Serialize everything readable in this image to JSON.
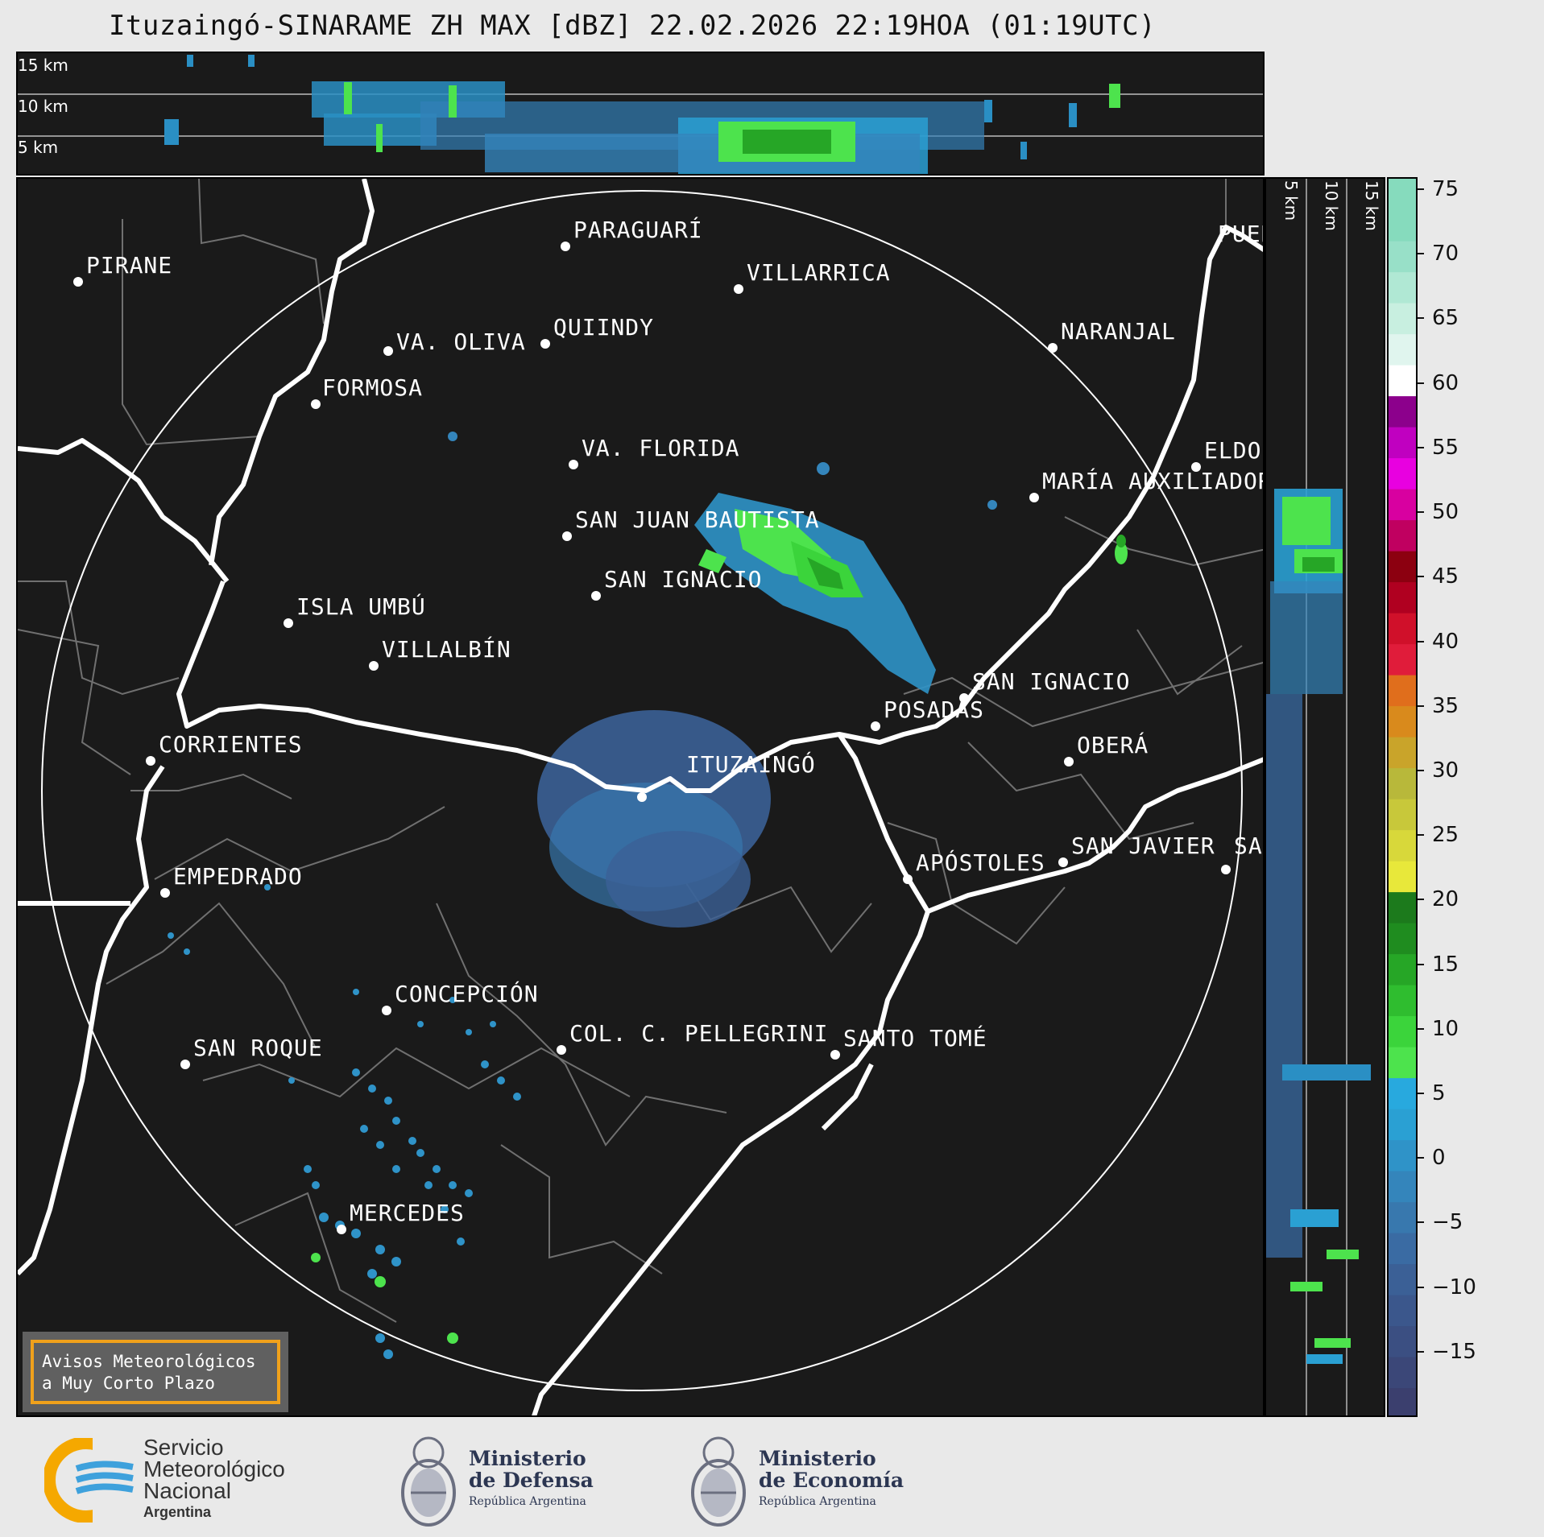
{
  "title": "Ituzaingó-SINARAME ZH MAX [dBZ] 22.02.2026 22:19HOA (01:19UTC)",
  "altitude_labels": {
    "top": [
      "15 km",
      "10 km",
      "5 km"
    ],
    "right": [
      "5 km",
      "10 km",
      "15 km"
    ]
  },
  "cities": [
    "PIRANE",
    "PARAGUARÍ",
    "VILLARRICA",
    "QUIINDY",
    "VA. OLIVA",
    "FORMOSA",
    "NARANJAL",
    "VA. FLORIDA",
    "ELDORADO",
    "MARÍA AUXILIADORA",
    "SAN JUAN BAUTISTA",
    "SAN IGNACIO",
    "ISLA UMBÚ",
    "VILLALBÍN",
    "SAN IGNACIO",
    "POSADAS",
    "CORRIENTES",
    "ITUZAINGÓ",
    "OBERÁ",
    "EMPEDRADO",
    "APÓSTOLES",
    "SAN JAVIER",
    "SAN",
    "CONCEPCIÓN",
    "COL. C. PELLEGRINI",
    "SANTO TOMÉ",
    "SAN ROQUE",
    "MERCEDES",
    "PUERTO"
  ],
  "colorbar": {
    "unit": "dBZ",
    "ticks": [
      "75",
      "70",
      "65",
      "60",
      "55",
      "50",
      "45",
      "40",
      "35",
      "30",
      "25",
      "20",
      "15",
      "10",
      "5",
      "0",
      "−5",
      "−10",
      "−15"
    ],
    "range": [
      -20,
      76
    ],
    "colors": [
      "#3b3f6e",
      "#3b4778",
      "#3b4f82",
      "#3b578c",
      "#3b6096",
      "#3a6ba3",
      "#3878ae",
      "#3485bb",
      "#2f93c8",
      "#2aa0d3",
      "#28a9de",
      "#4de34d",
      "#3bd43b",
      "#2fbd2f",
      "#26a626",
      "#1f8c1f",
      "#1c7a1c",
      "#e8e83a",
      "#d8d83a",
      "#c8c83a",
      "#b8b83a",
      "#c9a42a",
      "#d98a1c",
      "#e06e1c",
      "#e01c3a",
      "#d0102a",
      "#b00020",
      "#8c0010",
      "#c00060",
      "#d800a0",
      "#e800e0",
      "#c000c0",
      "#8c008c",
      "#ffffff",
      "#e0f5ee",
      "#c8efe0",
      "#b0e8d4",
      "#98e0c8",
      "#86dbbd",
      "#86dbbd"
    ]
  },
  "avisos": {
    "line1": "Avisos Meteorológicos",
    "line2": "a Muy Corto Plazo"
  },
  "logos": {
    "smn": {
      "line1": "Servicio",
      "line2": "Meteorológico",
      "line3": "Nacional",
      "line4": "Argentina"
    },
    "defensa": {
      "line1": "Ministerio",
      "line2": "de Defensa",
      "line3": "República Argentina"
    },
    "economia": {
      "line1": "Ministerio",
      "line2": "de Economía",
      "line3": "República Argentina"
    }
  }
}
